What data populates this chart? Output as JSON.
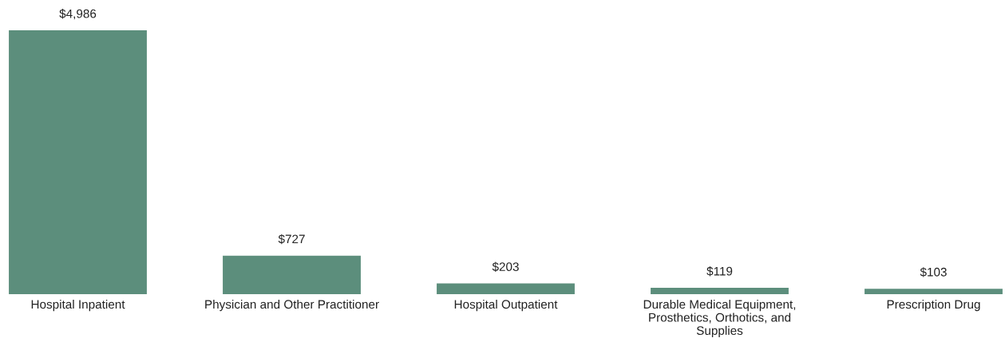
{
  "chart_data": {
    "type": "bar",
    "categories": [
      "Hospital Inpatient",
      "Physician and Other Practitioner",
      "Hospital Outpatient",
      "Durable Medical Equipment, Prosthetics, Orthotics, and Supplies",
      "Prescription Drug"
    ],
    "values": [
      4986,
      727,
      203,
      119,
      103
    ],
    "value_labels": [
      "$4,986",
      "$727",
      "$203",
      "$119",
      "$103"
    ],
    "color": "#5c8e7c",
    "tick_labels": "x"
  }
}
